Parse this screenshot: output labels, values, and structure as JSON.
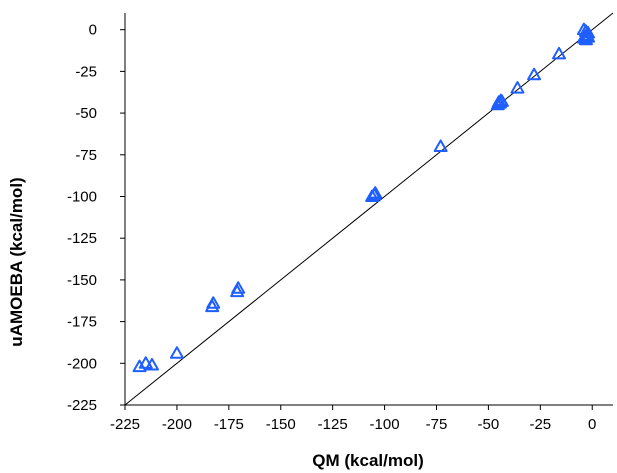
{
  "chart_data": {
    "type": "scatter",
    "title": "",
    "xlabel": "QM (kcal/mol)",
    "ylabel": "uAMOEBA (kcal/mol)",
    "xlim": [
      -225,
      10
    ],
    "ylim": [
      -225,
      10
    ],
    "x_ticks": [
      "-225",
      "-200",
      "-175",
      "-150",
      "-125",
      "-100",
      "-75",
      "-50",
      "-25",
      "0"
    ],
    "y_ticks": [
      "0",
      "-25",
      "-50",
      "-75",
      "-100",
      "-125",
      "-150",
      "-175",
      "-200",
      "-225"
    ],
    "grid": false,
    "legend": false,
    "reference_line": {
      "x": [
        -225,
        10
      ],
      "y": [
        -225,
        10
      ]
    },
    "marker": "open-triangle",
    "marker_color": "#1f5fff",
    "series": [
      {
        "x": [
          -218,
          -215,
          -212,
          -200,
          -183,
          -182.5,
          -171,
          -170.5,
          -106,
          -105,
          -104.5,
          -73,
          -45.5,
          -45,
          -44.5,
          -44,
          -43.5,
          -36,
          -28,
          -16,
          -4,
          -3.5,
          -3,
          -2.5,
          -2,
          -4,
          -3,
          -2
        ],
        "y": [
          -202,
          -200,
          -201,
          -194,
          -166,
          -164,
          -157,
          -155,
          -100,
          -99,
          -98,
          -70,
          -45,
          -43.5,
          -44,
          -42.5,
          -43,
          -35,
          -27,
          -14.5,
          -5,
          -4,
          -6,
          -3.5,
          -4.5,
          0,
          -1,
          -2
        ]
      }
    ]
  }
}
